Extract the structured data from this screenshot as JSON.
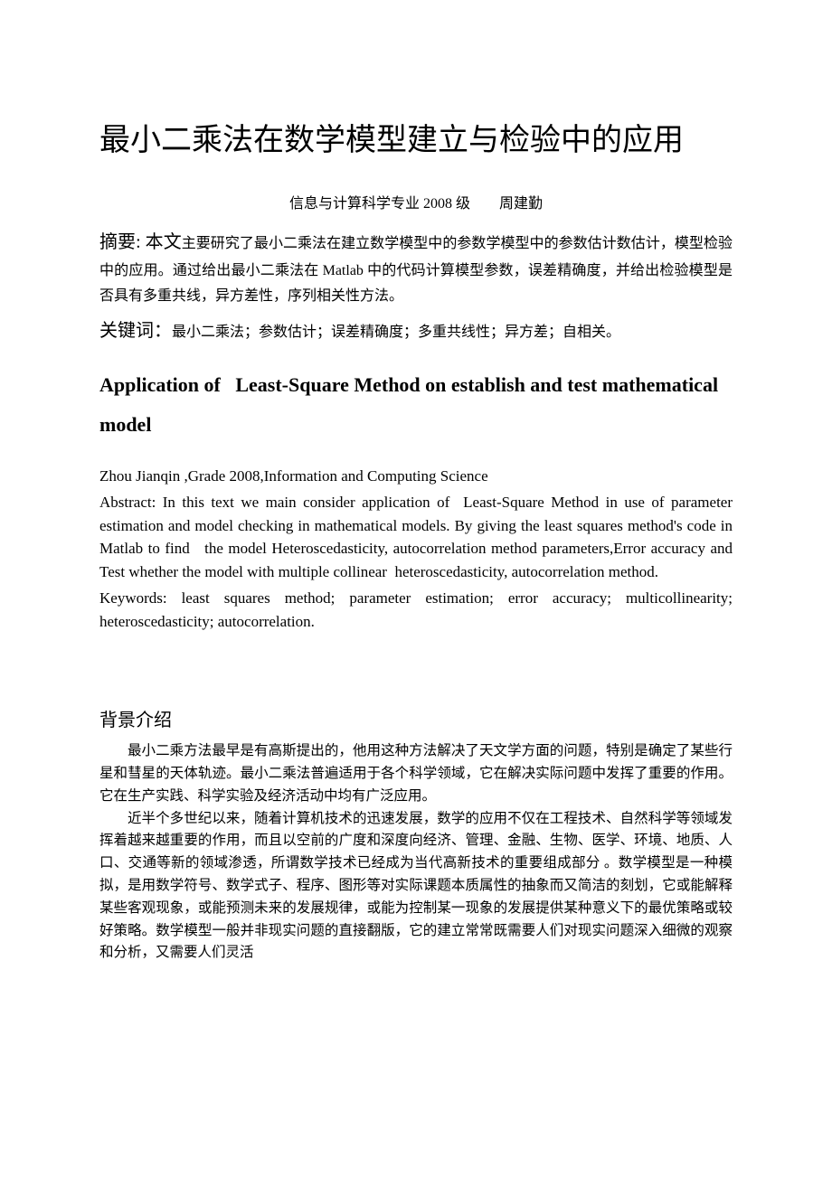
{
  "title_cn": "最小二乘法在数学模型建立与检验中的应用",
  "author_line": "信息与计算科学专业 2008 级  周建勤",
  "abstract_cn_label": "摘要:",
  "abstract_cn_lead": " 本文",
  "abstract_cn_rest": "主要研究了最小二乘法在建立数学模型中的参数学模型中的参数估计数估计，模型检验中的应用。通过给出最小二乘法在 Matlab 中的代码计算模型参数，误差精确度，并给出检验模型是否具有多重共线，异方差性，序列相关性方法。",
  "keywords_cn_label": "关键词：",
  "keywords_cn": "最小二乘法；参数估计；误差精确度；多重共线性；异方差；自相关。",
  "title_en": "Application of   Least-Square Method on establish and test mathematical model",
  "author_en": "Zhou Jianqin ,Grade 2008,Information and Computing Science",
  "abstract_en": "Abstract: In this text we main consider application of  Least-Square Method in use of parameter estimation and model checking in mathematical models. By giving the least squares method's code in Matlab to find   the model Heteroscedasticity, autocorrelation method parameters,Error accuracy and Test whether the model with multiple collinear  heteroscedasticity, autocorrelation method.",
  "keywords_en": "Keywords: least squares method; parameter estimation; error accuracy; multicollinearity; heteroscedasticity; autocorrelation.",
  "section_heading": "背景介绍",
  "para1": "最小二乘方法最早是有高斯提出的，他用这种方法解决了天文学方面的问题，特别是确定了某些行星和彗星的天体轨迹。最小二乘法普遍适用于各个科学领域，它在解决实际问题中发挥了重要的作用。它在生产实践、科学实验及经济活动中均有广泛应用。",
  "para2": "近半个多世纪以来，随着计算机技术的迅速发展，数学的应用不仅在工程技术、自然科学等领域发挥着越来越重要的作用，而且以空前的广度和深度向经济、管理、金融、生物、医学、环境、地质、人口、交通等新的领域渗透，所谓数学技术已经成为当代高新技术的重要组成部分 。数学模型是一种模拟，是用数学符号、数学式子、程序、图形等对实际课题本质属性的抽象而又简洁的刻划，它或能解释某些客观现象，或能预测未来的发展规律，或能为控制某一现象的发展提供某种意义下的最优策略或较好策略。数学模型一般并非现实问题的直接翻版，它的建立常常既需要人们对现实问题深入细微的观察和分析，又需要人们灵活"
}
